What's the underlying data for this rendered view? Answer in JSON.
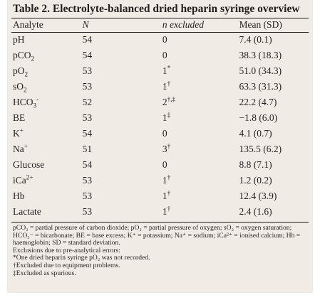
{
  "title": "Table 2. Electrolyte-balanced dried heparin syringe overview",
  "headers": {
    "analyte": "Analyte",
    "n": "N",
    "excluded": "n excluded",
    "mean": "Mean (SD)"
  },
  "rows": [
    {
      "analyte": "pH",
      "n": "54",
      "excluded": "0",
      "mark": "",
      "mean": "7.4 (0.1)"
    },
    {
      "analyte": "pCO",
      "sub": "2",
      "n": "54",
      "excluded": "0",
      "mark": "",
      "mean": "38.3 (18.3)"
    },
    {
      "analyte": "pO",
      "sub": "2",
      "n": "53",
      "excluded": "1",
      "mark": "*",
      "mean": "51.0 (34.3)"
    },
    {
      "analyte": "sO",
      "sub": "2",
      "n": "53",
      "excluded": "1",
      "mark": "†",
      "mean": "63.3 (31.3)"
    },
    {
      "analyte": "HCO",
      "sub": "3",
      "sup": "-",
      "n": "52",
      "excluded": "2",
      "mark": "†,‡",
      "mean": "22.2 (4.7)"
    },
    {
      "analyte": "BE",
      "n": "53",
      "excluded": "1",
      "mark": "‡",
      "mean": "−1.8 (6.0)"
    },
    {
      "analyte": "K",
      "sup": "+",
      "n": "54",
      "excluded": "0",
      "mark": "",
      "mean": "4.1 (0.7)"
    },
    {
      "analyte": "Na",
      "sup": "+",
      "n": "51",
      "excluded": "3",
      "mark": "†",
      "mean": "135.5 (6.2)"
    },
    {
      "analyte": "Glucose",
      "n": "54",
      "excluded": "0",
      "mark": "",
      "mean": "8.8 (7.1)"
    },
    {
      "analyte": "iCa",
      "sup": "2+",
      "n": "53",
      "excluded": "1",
      "mark": "†",
      "mean": "1.2 (0.2)"
    },
    {
      "analyte": "Hb",
      "n": "53",
      "excluded": "1",
      "mark": "†",
      "mean": "12.4 (3.9)"
    },
    {
      "analyte": "Lactate",
      "n": "53",
      "excluded": "1",
      "mark": "†",
      "mean": "2.4 (1.6)"
    }
  ],
  "footnotes": {
    "abbreviations": "pCO₂ = partial pressure of carbon dioxide; pO₂ = partial pressure of oxygen; sO₂ = oxygen saturation; HCO₃⁻ = bicarbonate; BE = base excess; K⁺ = potassium; Na⁺ = sodium; iCa²⁺ = ionised calcium; Hb = haemoglobin; SD = standard deviation.",
    "exclusions_heading": "Exclusions due to pre-analytical errors:",
    "note_star": "*One dried heparin syringe pO₂ was not recorded.",
    "note_dagger": "†Excluded due to equipment problems.",
    "note_ddagger": "‡Excluded as spurious."
  }
}
